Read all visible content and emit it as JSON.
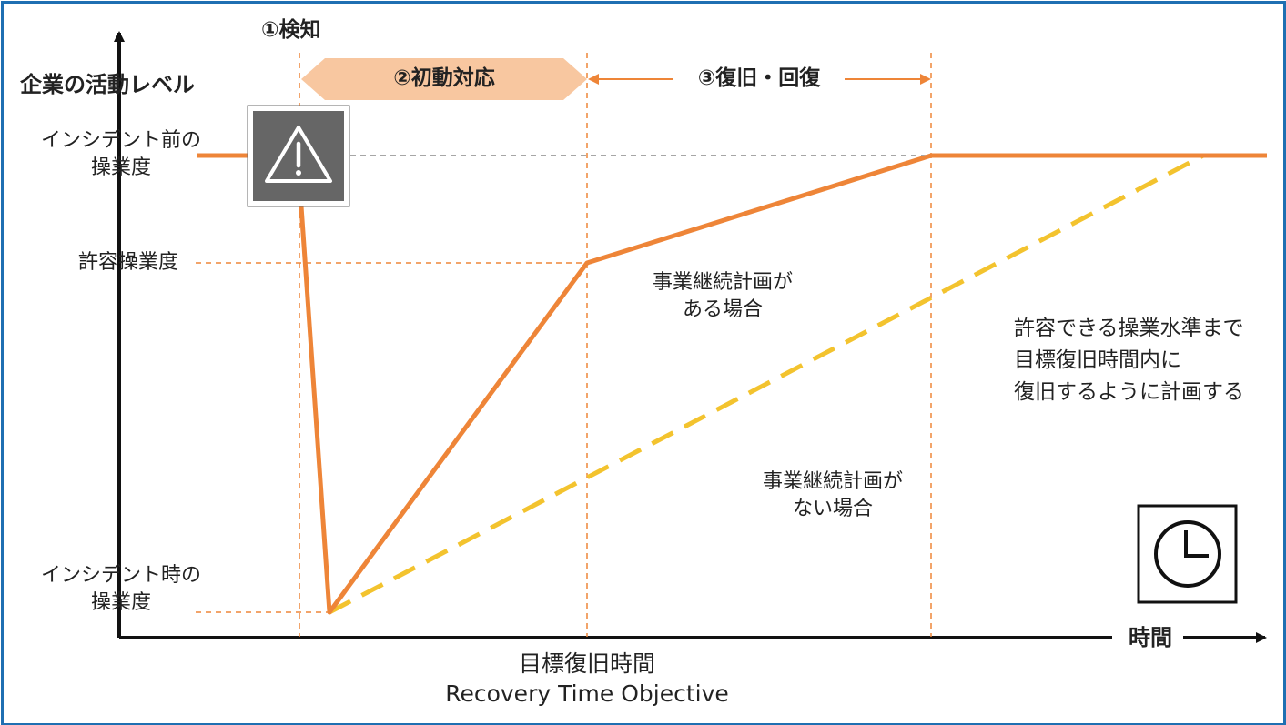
{
  "y_axis_label": "企業の活動レベル",
  "x_axis_label": "時間",
  "levels": {
    "pre_incident": [
      "インシデント前の",
      "操業度"
    ],
    "allowable": "許容操業度",
    "at_incident": [
      "インシデント時の",
      "操業度"
    ]
  },
  "phases": {
    "detect": "①検知",
    "initial_response": "②初動対応",
    "recovery": "③復旧・回復"
  },
  "rto": [
    "目標復旧時間",
    "Recovery Time Objective"
  ],
  "with_plan": [
    "事業継続計画が",
    "ある場合"
  ],
  "without_plan": [
    "事業継続計画が",
    "ない場合"
  ],
  "note": [
    "許容できる操業水準まで",
    "目標復旧時間内に",
    "復旧するように計画する"
  ],
  "icons": {
    "warning": "warning-icon",
    "clock": "clock-icon"
  },
  "colors": {
    "with_plan_line": "#ee8538",
    "without_plan_line": "#f3c32e",
    "phase_band": "#f8c7a0",
    "guide_dash": "#ee8538",
    "frame": "#1f6fb2",
    "icon_bg": "#666666"
  }
}
